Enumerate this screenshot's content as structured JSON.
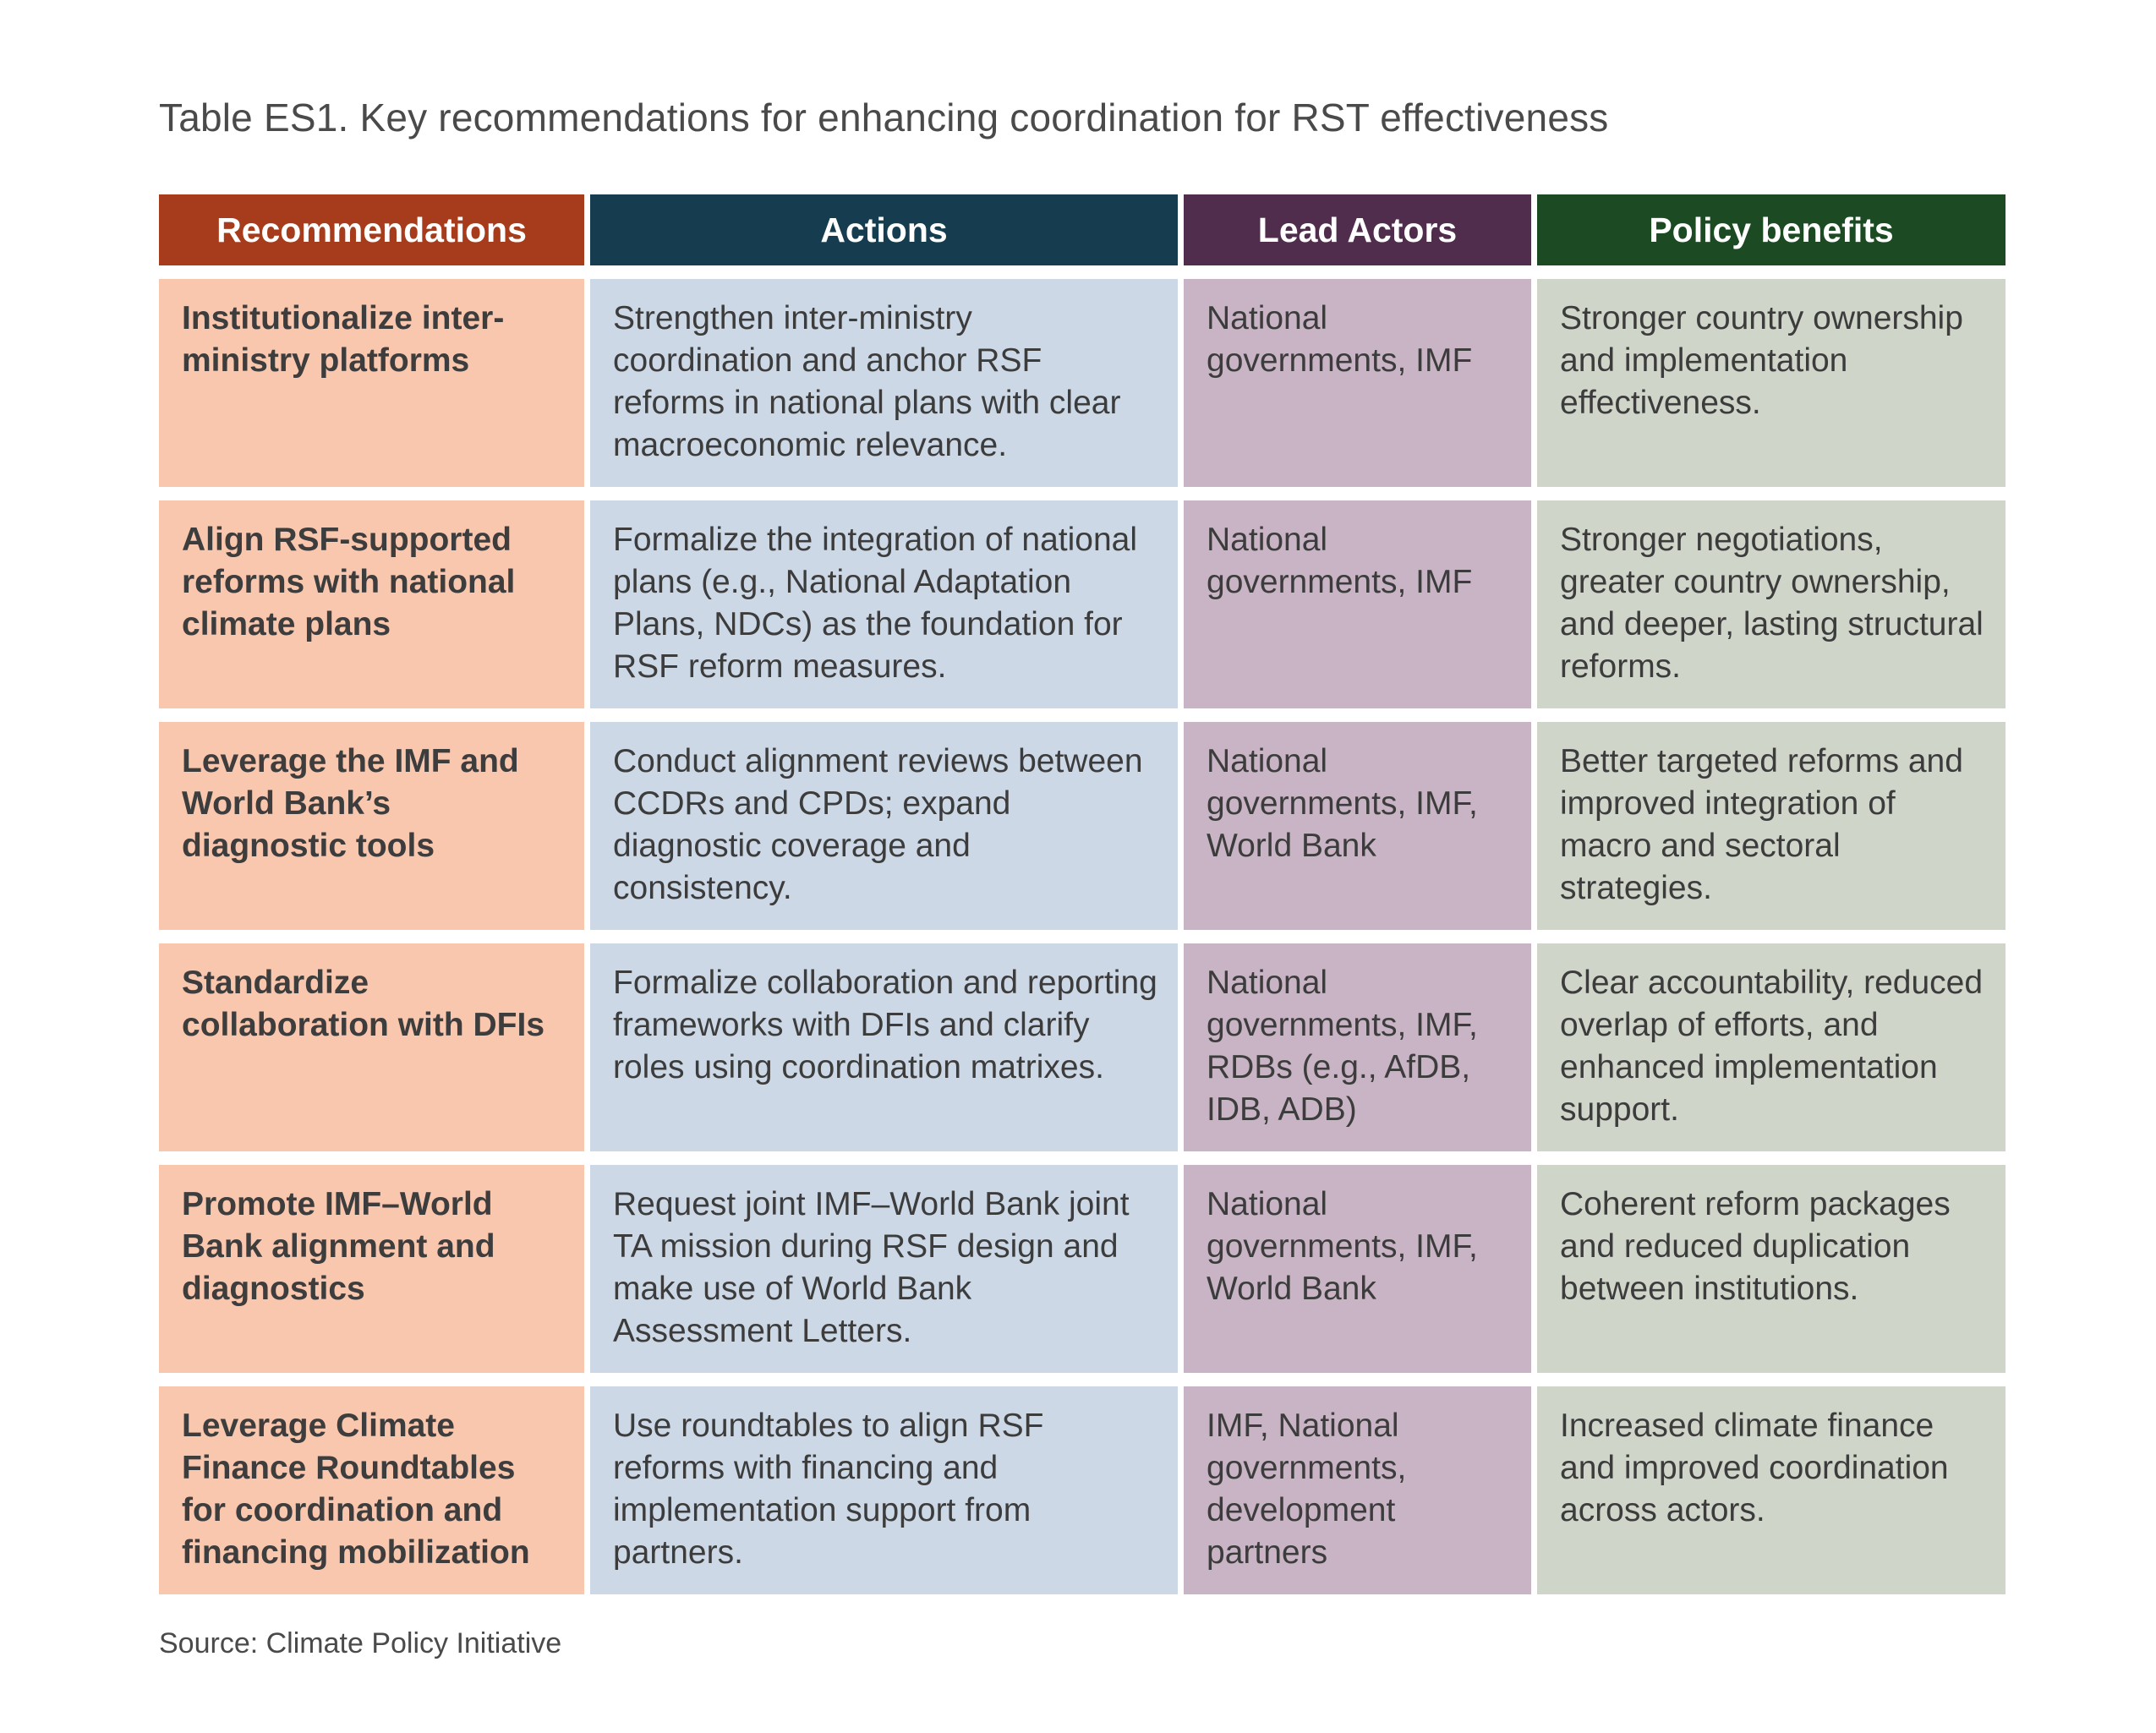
{
  "title": "Table ES1. Key recommendations for enhancing coordination for RST effectiveness",
  "headers": {
    "recommendations": "Recommendations",
    "actions": "Actions",
    "lead_actors": "Lead Actors",
    "policy_benefits": "Policy benefits"
  },
  "colors": {
    "header_recommendations": "#a63c1b",
    "header_actions": "#163d4f",
    "header_lead_actors": "#502d4d",
    "header_policy_benefits": "#1c4a22",
    "cell_recommendations": "#f9c6ae",
    "cell_actions": "#ccd8e6",
    "cell_lead_actors": "#c8b4c4",
    "cell_policy_benefits": "#cfd5c9"
  },
  "rows": [
    {
      "recommendation": "Institutionalize inter-ministry platforms",
      "action": "Strengthen inter-ministry coordination and anchor RSF reforms in national plans with clear macroeconomic relevance.",
      "lead": "National governments, IMF",
      "benefit": "Stronger country ownership and implementation effectiveness."
    },
    {
      "recommendation": "Align RSF-supported reforms with national climate plans",
      "action": "Formalize the integration of national plans (e.g., National Adaptation Plans, NDCs) as the foundation for RSF reform measures.",
      "lead": "National governments, IMF",
      "benefit": "Stronger negotiations, greater country ownership, and deeper, lasting structural reforms."
    },
    {
      "recommendation": "Leverage the IMF and World Bank’s diagnostic tools",
      "action": "Conduct alignment reviews between CCDRs and CPDs; expand diagnostic coverage and consistency.",
      "lead": "National governments, IMF, World Bank",
      "benefit": "Better targeted reforms and improved integration of macro and sectoral strategies."
    },
    {
      "recommendation": "Standardize collaboration with DFIs",
      "action": "Formalize collaboration and reporting frameworks with DFIs and clarify roles using coordination matrixes.",
      "lead": "National governments, IMF, RDBs (e.g., AfDB, IDB, ADB)",
      "benefit": "Clear accountability, reduced overlap of efforts, and enhanced implementation support."
    },
    {
      "recommendation": "Promote IMF–World Bank alignment and diagnostics",
      "action": "Request joint IMF–World Bank joint TA mission during RSF design and make use of World Bank Assessment Letters.",
      "lead": "National governments, IMF, World Bank",
      "benefit": "Coherent reform packages and reduced duplication between institutions."
    },
    {
      "recommendation": "Leverage Climate Finance Roundtables for coordination and financing mobilization",
      "action": "Use roundtables to align RSF reforms with financing and implementation support from partners.",
      "lead": "IMF, National governments, development partners",
      "benefit": "Increased climate finance and improved coordination across actors."
    }
  ],
  "source": "Source: Climate Policy Initiative"
}
